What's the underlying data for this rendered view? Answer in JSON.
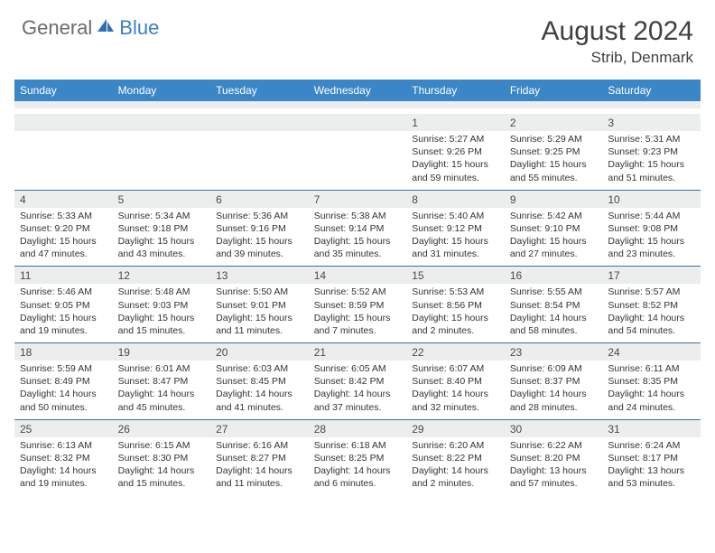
{
  "brand": {
    "part1": "General",
    "part2": "Blue"
  },
  "title": "August 2024",
  "location": "Strib, Denmark",
  "colors": {
    "header_bg": "#3b86c7",
    "header_text": "#ffffff",
    "num_bg": "#eceded",
    "divider": "#3b6fa0",
    "body_text": "#333333",
    "brand_gray": "#6b6b6b",
    "brand_blue": "#3b7fc4"
  },
  "dow": [
    "Sunday",
    "Monday",
    "Tuesday",
    "Wednesday",
    "Thursday",
    "Friday",
    "Saturday"
  ],
  "weeks": [
    [
      {
        "n": "",
        "l": [
          "",
          "",
          ""
        ]
      },
      {
        "n": "",
        "l": [
          "",
          "",
          ""
        ]
      },
      {
        "n": "",
        "l": [
          "",
          "",
          ""
        ]
      },
      {
        "n": "",
        "l": [
          "",
          "",
          ""
        ]
      },
      {
        "n": "1",
        "l": [
          "Sunrise: 5:27 AM",
          "Sunset: 9:26 PM",
          "Daylight: 15 hours and 59 minutes."
        ]
      },
      {
        "n": "2",
        "l": [
          "Sunrise: 5:29 AM",
          "Sunset: 9:25 PM",
          "Daylight: 15 hours and 55 minutes."
        ]
      },
      {
        "n": "3",
        "l": [
          "Sunrise: 5:31 AM",
          "Sunset: 9:23 PM",
          "Daylight: 15 hours and 51 minutes."
        ]
      }
    ],
    [
      {
        "n": "4",
        "l": [
          "Sunrise: 5:33 AM",
          "Sunset: 9:20 PM",
          "Daylight: 15 hours and 47 minutes."
        ]
      },
      {
        "n": "5",
        "l": [
          "Sunrise: 5:34 AM",
          "Sunset: 9:18 PM",
          "Daylight: 15 hours and 43 minutes."
        ]
      },
      {
        "n": "6",
        "l": [
          "Sunrise: 5:36 AM",
          "Sunset: 9:16 PM",
          "Daylight: 15 hours and 39 minutes."
        ]
      },
      {
        "n": "7",
        "l": [
          "Sunrise: 5:38 AM",
          "Sunset: 9:14 PM",
          "Daylight: 15 hours and 35 minutes."
        ]
      },
      {
        "n": "8",
        "l": [
          "Sunrise: 5:40 AM",
          "Sunset: 9:12 PM",
          "Daylight: 15 hours and 31 minutes."
        ]
      },
      {
        "n": "9",
        "l": [
          "Sunrise: 5:42 AM",
          "Sunset: 9:10 PM",
          "Daylight: 15 hours and 27 minutes."
        ]
      },
      {
        "n": "10",
        "l": [
          "Sunrise: 5:44 AM",
          "Sunset: 9:08 PM",
          "Daylight: 15 hours and 23 minutes."
        ]
      }
    ],
    [
      {
        "n": "11",
        "l": [
          "Sunrise: 5:46 AM",
          "Sunset: 9:05 PM",
          "Daylight: 15 hours and 19 minutes."
        ]
      },
      {
        "n": "12",
        "l": [
          "Sunrise: 5:48 AM",
          "Sunset: 9:03 PM",
          "Daylight: 15 hours and 15 minutes."
        ]
      },
      {
        "n": "13",
        "l": [
          "Sunrise: 5:50 AM",
          "Sunset: 9:01 PM",
          "Daylight: 15 hours and 11 minutes."
        ]
      },
      {
        "n": "14",
        "l": [
          "Sunrise: 5:52 AM",
          "Sunset: 8:59 PM",
          "Daylight: 15 hours and 7 minutes."
        ]
      },
      {
        "n": "15",
        "l": [
          "Sunrise: 5:53 AM",
          "Sunset: 8:56 PM",
          "Daylight: 15 hours and 2 minutes."
        ]
      },
      {
        "n": "16",
        "l": [
          "Sunrise: 5:55 AM",
          "Sunset: 8:54 PM",
          "Daylight: 14 hours and 58 minutes."
        ]
      },
      {
        "n": "17",
        "l": [
          "Sunrise: 5:57 AM",
          "Sunset: 8:52 PM",
          "Daylight: 14 hours and 54 minutes."
        ]
      }
    ],
    [
      {
        "n": "18",
        "l": [
          "Sunrise: 5:59 AM",
          "Sunset: 8:49 PM",
          "Daylight: 14 hours and 50 minutes."
        ]
      },
      {
        "n": "19",
        "l": [
          "Sunrise: 6:01 AM",
          "Sunset: 8:47 PM",
          "Daylight: 14 hours and 45 minutes."
        ]
      },
      {
        "n": "20",
        "l": [
          "Sunrise: 6:03 AM",
          "Sunset: 8:45 PM",
          "Daylight: 14 hours and 41 minutes."
        ]
      },
      {
        "n": "21",
        "l": [
          "Sunrise: 6:05 AM",
          "Sunset: 8:42 PM",
          "Daylight: 14 hours and 37 minutes."
        ]
      },
      {
        "n": "22",
        "l": [
          "Sunrise: 6:07 AM",
          "Sunset: 8:40 PM",
          "Daylight: 14 hours and 32 minutes."
        ]
      },
      {
        "n": "23",
        "l": [
          "Sunrise: 6:09 AM",
          "Sunset: 8:37 PM",
          "Daylight: 14 hours and 28 minutes."
        ]
      },
      {
        "n": "24",
        "l": [
          "Sunrise: 6:11 AM",
          "Sunset: 8:35 PM",
          "Daylight: 14 hours and 24 minutes."
        ]
      }
    ],
    [
      {
        "n": "25",
        "l": [
          "Sunrise: 6:13 AM",
          "Sunset: 8:32 PM",
          "Daylight: 14 hours and 19 minutes."
        ]
      },
      {
        "n": "26",
        "l": [
          "Sunrise: 6:15 AM",
          "Sunset: 8:30 PM",
          "Daylight: 14 hours and 15 minutes."
        ]
      },
      {
        "n": "27",
        "l": [
          "Sunrise: 6:16 AM",
          "Sunset: 8:27 PM",
          "Daylight: 14 hours and 11 minutes."
        ]
      },
      {
        "n": "28",
        "l": [
          "Sunrise: 6:18 AM",
          "Sunset: 8:25 PM",
          "Daylight: 14 hours and 6 minutes."
        ]
      },
      {
        "n": "29",
        "l": [
          "Sunrise: 6:20 AM",
          "Sunset: 8:22 PM",
          "Daylight: 14 hours and 2 minutes."
        ]
      },
      {
        "n": "30",
        "l": [
          "Sunrise: 6:22 AM",
          "Sunset: 8:20 PM",
          "Daylight: 13 hours and 57 minutes."
        ]
      },
      {
        "n": "31",
        "l": [
          "Sunrise: 6:24 AM",
          "Sunset: 8:17 PM",
          "Daylight: 13 hours and 53 minutes."
        ]
      }
    ]
  ]
}
